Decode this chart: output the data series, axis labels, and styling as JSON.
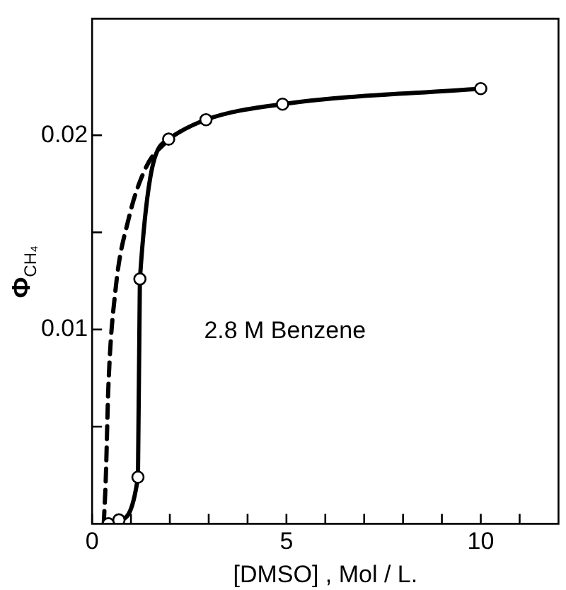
{
  "chart_data": {
    "type": "line",
    "xlabel": "[DMSO] , Mol / L.",
    "ylabel": "Φ$_{CH₄}$",
    "annotations": [
      "2.8 M Benzene"
    ],
    "xlim": [
      0,
      12
    ],
    "ylim": [
      0,
      0.026
    ],
    "xticks": [
      0,
      {
        "value": 1,
        "label": null
      },
      {
        "value": 2,
        "label": null
      },
      {
        "value": 3,
        "label": null
      },
      {
        "value": 4,
        "label": null
      },
      5,
      {
        "value": 6,
        "label": null
      },
      {
        "value": 7,
        "label": null
      },
      {
        "value": 8,
        "label": null
      },
      {
        "value": 9,
        "label": null
      },
      10,
      {
        "value": 11,
        "label": null
      }
    ],
    "yticks": [
      {
        "value": 0.005,
        "label": null
      },
      0.01,
      {
        "value": 0.015,
        "label": null
      },
      0.02
    ],
    "grid": false,
    "legend": false,
    "series": [
      {
        "color": "#000000",
        "marker": "circle",
        "line_style": "solid",
        "x": [
          0.42,
          0.69,
          1.18,
          1.23,
          1.97,
          2.93,
          4.9,
          10
        ],
        "values": [
          0,
          0.0002,
          0.0024,
          0.0126,
          0.0198,
          0.0208,
          0.0216,
          0.0224
        ]
      },
      {
        "color": "#000000",
        "marker": "none",
        "line_style": "dashed",
        "x": [
          0.3,
          0.35,
          0.42,
          0.6,
          0.94,
          1.4,
          1.97
        ],
        "values": [
          0,
          0.0022,
          0.0071,
          0.012,
          0.0157,
          0.0184,
          0.0198
        ]
      }
    ]
  }
}
